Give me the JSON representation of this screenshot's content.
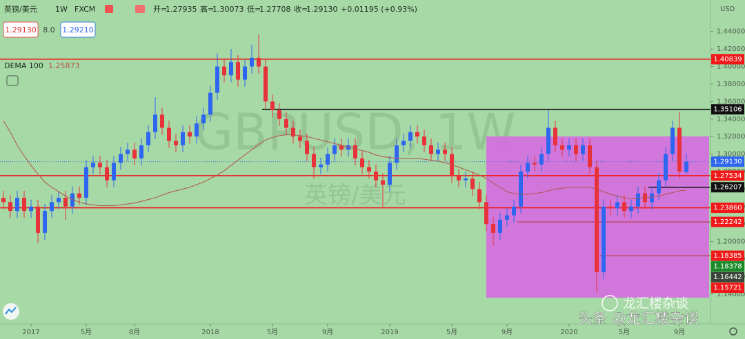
{
  "header": {
    "symbol": "英镑/美元",
    "interval": "1W",
    "source": "FXCM",
    "ohlc": [
      {
        "label": "开",
        "value": "1.27935"
      },
      {
        "label": "高",
        "value": "1.30073"
      },
      {
        "label": "低",
        "value": "1.27708"
      },
      {
        "label": "收",
        "value": "1.29130"
      }
    ],
    "change": "+0.01195 (+0.93%)",
    "sell": "1.29130",
    "spread": "8.0",
    "buy": "1.29210",
    "indicator": "DEMA 100",
    "indicator_value": "1.25873",
    "currency": "USD"
  },
  "watermark": {
    "main": "GBPUSD, 1W",
    "sub": "英镑/美元"
  },
  "credits": {
    "wechat": "龙汇楼杂谈",
    "toutiao": "头条 @龙汇楼杂谈"
  },
  "chart_data": {
    "type": "candlestick",
    "categories": [
      null,
      null,
      null,
      null,
      "2017",
      null,
      null,
      null,
      null,
      null,
      null,
      null,
      "5月",
      null,
      null,
      null,
      null,
      null,
      null,
      "8月",
      null,
      null,
      null,
      null,
      null,
      null,
      null,
      null,
      null,
      null,
      "2018",
      null,
      null,
      null,
      null,
      null,
      null,
      null,
      null,
      "5月",
      null,
      null,
      null,
      null,
      null,
      null,
      null,
      "9月",
      null,
      null,
      null,
      null,
      null,
      null,
      null,
      null,
      "2019",
      null,
      null,
      null,
      null,
      null,
      null,
      null,
      null,
      "5月",
      null,
      null,
      null,
      null,
      null,
      null,
      null,
      "9月",
      null,
      null,
      null,
      null,
      null,
      null,
      null,
      null,
      "2020",
      null,
      null,
      null,
      null,
      null,
      null,
      null,
      "5月",
      null,
      null,
      null,
      null,
      null,
      null,
      null,
      "9月",
      null
    ],
    "open": [
      1.25,
      1.245,
      1.235,
      1.25,
      1.235,
      1.24,
      1.21,
      1.235,
      1.245,
      1.25,
      1.24,
      1.255,
      1.25,
      1.285,
      1.29,
      1.285,
      1.27,
      1.29,
      1.3,
      1.305,
      1.295,
      1.31,
      1.325,
      1.345,
      1.33,
      1.315,
      1.31,
      1.325,
      1.32,
      1.335,
      1.345,
      1.37,
      1.4,
      1.39,
      1.405,
      1.385,
      1.4,
      1.41,
      1.4,
      1.36,
      1.35,
      1.34,
      1.33,
      1.32,
      1.315,
      1.3,
      1.285,
      1.288,
      1.3,
      1.31,
      1.305,
      1.31,
      1.295,
      1.285,
      1.28,
      1.27,
      1.265,
      1.29,
      1.31,
      1.315,
      1.325,
      1.32,
      1.31,
      1.3,
      1.305,
      1.3,
      1.275,
      1.27,
      1.272,
      1.26,
      1.245,
      1.22,
      1.21,
      1.225,
      1.23,
      1.24,
      1.28,
      1.29,
      1.288,
      1.3,
      1.33,
      1.31,
      1.305,
      1.31,
      1.3,
      1.31,
      1.285,
      1.165,
      1.24,
      1.238,
      1.245,
      1.235,
      1.24,
      1.255,
      1.245,
      1.255,
      1.27,
      1.3,
      1.33,
      1.27935
    ],
    "high": [
      1.258,
      1.253,
      1.258,
      1.258,
      1.248,
      1.248,
      1.243,
      1.253,
      1.258,
      1.258,
      1.263,
      1.263,
      1.293,
      1.298,
      1.298,
      1.293,
      1.298,
      1.308,
      1.313,
      1.313,
      1.318,
      1.333,
      1.365,
      1.353,
      1.338,
      1.323,
      1.333,
      1.333,
      1.343,
      1.353,
      1.378,
      1.415,
      1.408,
      1.42,
      1.413,
      1.408,
      1.425,
      1.437,
      1.408,
      1.368,
      1.358,
      1.348,
      1.338,
      1.328,
      1.323,
      1.308,
      1.296,
      1.308,
      1.318,
      1.318,
      1.318,
      1.318,
      1.303,
      1.293,
      1.288,
      1.278,
      1.298,
      1.318,
      1.323,
      1.333,
      1.333,
      1.328,
      1.318,
      1.313,
      1.313,
      1.308,
      1.283,
      1.28,
      1.28,
      1.268,
      1.253,
      1.228,
      1.233,
      1.238,
      1.248,
      1.288,
      1.298,
      1.298,
      1.308,
      1.35,
      1.338,
      1.318,
      1.318,
      1.318,
      1.318,
      1.318,
      1.293,
      1.248,
      1.248,
      1.253,
      1.253,
      1.248,
      1.263,
      1.263,
      1.263,
      1.278,
      1.308,
      1.338,
      1.348,
      1.30073
    ],
    "low": [
      1.237,
      1.227,
      1.227,
      1.227,
      1.227,
      1.198,
      1.202,
      1.227,
      1.237,
      1.225,
      1.232,
      1.242,
      1.242,
      1.277,
      1.277,
      1.262,
      1.262,
      1.282,
      1.292,
      1.287,
      1.287,
      1.302,
      1.317,
      1.322,
      1.307,
      1.302,
      1.302,
      1.312,
      1.312,
      1.327,
      1.337,
      1.362,
      1.382,
      1.382,
      1.377,
      1.377,
      1.392,
      1.392,
      1.352,
      1.342,
      1.332,
      1.322,
      1.312,
      1.307,
      1.292,
      1.272,
      1.277,
      1.28,
      1.292,
      1.297,
      1.297,
      1.287,
      1.277,
      1.272,
      1.262,
      1.24,
      1.257,
      1.282,
      1.302,
      1.307,
      1.312,
      1.302,
      1.292,
      1.292,
      1.292,
      1.267,
      1.262,
      1.262,
      1.252,
      1.237,
      1.212,
      1.195,
      1.202,
      1.217,
      1.222,
      1.232,
      1.272,
      1.28,
      1.28,
      1.292,
      1.302,
      1.297,
      1.297,
      1.292,
      1.292,
      1.277,
      1.142,
      1.157,
      1.23,
      1.23,
      1.227,
      1.227,
      1.232,
      1.237,
      1.237,
      1.247,
      1.262,
      1.292,
      1.272,
      1.27708
    ],
    "close": [
      1.245,
      1.235,
      1.25,
      1.235,
      1.24,
      1.21,
      1.235,
      1.245,
      1.25,
      1.24,
      1.255,
      1.25,
      1.285,
      1.29,
      1.285,
      1.27,
      1.29,
      1.3,
      1.305,
      1.295,
      1.31,
      1.325,
      1.345,
      1.33,
      1.315,
      1.31,
      1.325,
      1.32,
      1.335,
      1.345,
      1.37,
      1.4,
      1.39,
      1.405,
      1.385,
      1.4,
      1.41,
      1.4,
      1.36,
      1.35,
      1.34,
      1.33,
      1.32,
      1.315,
      1.3,
      1.285,
      1.288,
      1.3,
      1.31,
      1.305,
      1.31,
      1.295,
      1.285,
      1.28,
      1.27,
      1.265,
      1.29,
      1.31,
      1.315,
      1.325,
      1.32,
      1.31,
      1.3,
      1.305,
      1.3,
      1.275,
      1.27,
      1.272,
      1.26,
      1.245,
      1.22,
      1.21,
      1.225,
      1.23,
      1.24,
      1.28,
      1.29,
      1.288,
      1.3,
      1.33,
      1.31,
      1.305,
      1.31,
      1.3,
      1.31,
      1.285,
      1.165,
      1.24,
      1.238,
      1.245,
      1.235,
      1.24,
      1.255,
      1.245,
      1.255,
      1.27,
      1.3,
      1.33,
      1.28,
      1.2913
    ],
    "up_color": "#2f66f0",
    "down_color": "#e8323a",
    "series": [
      {
        "name": "DEMA 100",
        "color": "#b5524a",
        "values": [
          1.338,
          1.325,
          1.31,
          1.298,
          1.287,
          1.277,
          1.268,
          1.262,
          1.257,
          1.252,
          1.248,
          1.245,
          1.243,
          1.242,
          1.241,
          1.241,
          1.241,
          1.242,
          1.243,
          1.244,
          1.246,
          1.248,
          1.25,
          1.253,
          1.256,
          1.258,
          1.26,
          1.262,
          1.265,
          1.268,
          1.272,
          1.276,
          1.281,
          1.287,
          1.293,
          1.299,
          1.305,
          1.311,
          1.316,
          1.319,
          1.321,
          1.322,
          1.322,
          1.321,
          1.32,
          1.318,
          1.316,
          1.314,
          1.312,
          1.31,
          1.308,
          1.306,
          1.304,
          1.302,
          1.299,
          1.297,
          1.296,
          1.295,
          1.295,
          1.295,
          1.295,
          1.294,
          1.293,
          1.292,
          1.29,
          1.288,
          1.285,
          1.282,
          1.279,
          1.276,
          1.272,
          1.267,
          1.262,
          1.257,
          1.255,
          1.254,
          1.254,
          1.255,
          1.256,
          1.258,
          1.26,
          1.261,
          1.262,
          1.262,
          1.262,
          1.262,
          1.26,
          1.257,
          1.254,
          1.252,
          1.25,
          1.249,
          1.249,
          1.25,
          1.251,
          1.252,
          1.254,
          1.256,
          1.258,
          1.2587
        ]
      }
    ],
    "levels": [
      {
        "value": 1.40839,
        "color": "#f01818",
        "bg": "#f01818",
        "line": "solid",
        "from": 0
      },
      {
        "value": 1.35106,
        "color": "#111111",
        "bg": "#111111",
        "line": "solid",
        "from": 38
      },
      {
        "value": 1.2913,
        "label": "1.29130",
        "color": "#3a6fe0",
        "bg": "#2f66f0",
        "line": "dotted",
        "from": 0
      },
      {
        "value": 1.27534,
        "color": "#f01818",
        "bg": "#f01818",
        "line": "solid",
        "from": 0
      },
      {
        "value": 1.26207,
        "color": "#111111",
        "bg": "#111111",
        "line": "solid",
        "from": 94
      },
      {
        "value": 1.2386,
        "label": "1.23860",
        "color": "#f01818",
        "bg": "#f01818",
        "line": "solid",
        "from": 0
      },
      {
        "value": 1.22242,
        "color": "#b03030",
        "bg": "#f01818",
        "line": "thin",
        "from": 75
      },
      {
        "value": 1.18385,
        "color": "#b03030",
        "bg": "#f01818",
        "line": "thin",
        "from": 87
      },
      {
        "value": 1.18378,
        "color": "#1b8a2a",
        "bg": "#1b8a2a",
        "line": "none",
        "from": 0
      },
      {
        "value": 1.16442,
        "color": "#3a463a",
        "bg": "#3a463a",
        "line": "none",
        "from": 0
      },
      {
        "value": 1.15721,
        "color": "#f01818",
        "bg": "#f01818",
        "line": "none",
        "from": 0
      }
    ],
    "ylim": [
      1.106,
      1.476
    ],
    "yticks": [
      {
        "value": 1.14,
        "label": "1.14000"
      },
      {
        "value": 1.16,
        "label": "1.16000"
      },
      {
        "value": 1.18,
        "label": "1.18000"
      },
      {
        "value": 1.2,
        "label": "1.20000"
      },
      {
        "value": 1.22,
        "label": "1.22000"
      },
      {
        "value": 1.24,
        "label": "1.24000"
      },
      {
        "value": 1.26,
        "label": "1.26000"
      },
      {
        "value": 1.28,
        "label": "1.28000"
      },
      {
        "value": 1.3,
        "label": "1.30000"
      },
      {
        "value": 1.32,
        "label": "1.32000"
      },
      {
        "value": 1.34,
        "label": "1.34000"
      },
      {
        "value": 1.36,
        "label": "1.36000"
      },
      {
        "value": 1.38,
        "label": "1.38000"
      },
      {
        "value": 1.4,
        "label": "1.40000"
      },
      {
        "value": 1.42,
        "label": "1.42000"
      },
      {
        "value": 1.44,
        "label": "1.44000"
      }
    ],
    "grid": false
  }
}
